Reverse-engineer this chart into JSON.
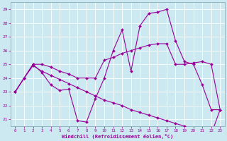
{
  "hours": [
    0,
    1,
    2,
    3,
    4,
    5,
    6,
    7,
    8,
    9,
    10,
    11,
    12,
    13,
    14,
    15,
    16,
    17,
    18,
    19,
    20,
    21,
    22,
    23
  ],
  "line1": [
    23.0,
    24.0,
    25.0,
    24.4,
    23.5,
    23.1,
    23.2,
    20.9,
    20.8,
    22.5,
    24.0,
    26.0,
    27.5,
    24.5,
    27.8,
    28.7,
    28.8,
    29.0,
    26.7,
    25.2,
    25.0,
    23.5,
    21.7,
    21.7
  ],
  "line2": [
    23.0,
    24.0,
    25.0,
    25.0,
    24.8,
    24.5,
    24.3,
    24.0,
    24.0,
    24.0,
    25.3,
    25.5,
    25.8,
    26.0,
    26.2,
    26.4,
    26.5,
    26.5,
    25.0,
    25.0,
    25.1,
    25.2,
    25.0,
    21.7
  ],
  "line3": [
    23.0,
    24.0,
    24.9,
    24.5,
    24.2,
    23.9,
    23.6,
    23.3,
    23.0,
    22.7,
    22.4,
    22.2,
    22.0,
    21.7,
    21.5,
    21.3,
    21.1,
    20.9,
    20.7,
    20.5,
    20.3,
    20.1,
    19.9,
    21.7
  ],
  "line_color": "#990099",
  "markersize": 2.0,
  "linewidth": 0.8,
  "xlabel": "Windchill (Refroidissement éolien,°C)",
  "ylim": [
    20.5,
    29.5
  ],
  "xlim": [
    -0.5,
    23.5
  ],
  "yticks": [
    21,
    22,
    23,
    24,
    25,
    26,
    27,
    28,
    29
  ],
  "xticks": [
    0,
    1,
    2,
    3,
    4,
    5,
    6,
    7,
    8,
    9,
    10,
    11,
    12,
    13,
    14,
    15,
    16,
    17,
    18,
    19,
    20,
    21,
    22,
    23
  ],
  "bg_color": "#cce8f0",
  "grid_color": "#b0d0dc"
}
